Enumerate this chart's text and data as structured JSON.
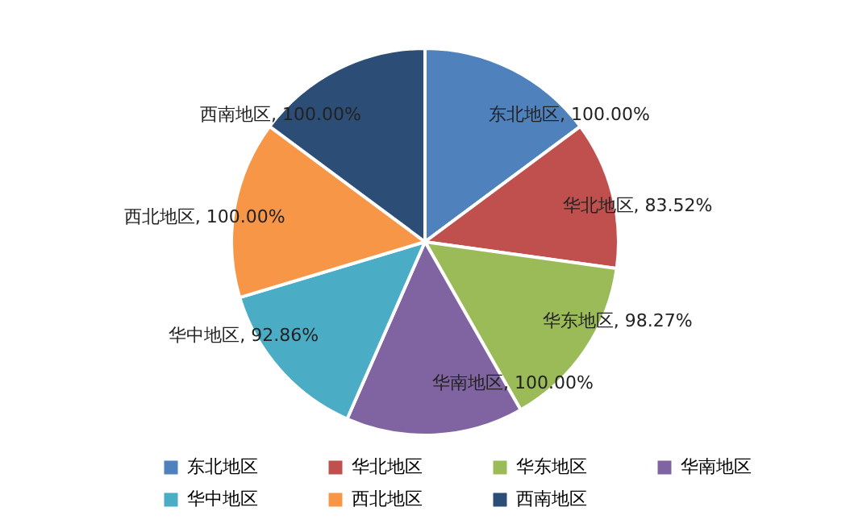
{
  "chart_data": {
    "type": "pie",
    "categories": [
      "东北地区",
      "华北地区",
      "华东地区",
      "华南地区",
      "华中地区",
      "西北地区",
      "西南地区"
    ],
    "values": [
      100,
      83.52,
      98.27,
      100,
      92.86,
      100,
      100
    ],
    "value_labels": [
      "东北地区, 100.00%",
      "华北地区, 83.52%",
      "华东地区, 98.27%",
      "华南地区, 100.00%",
      "华中地区, 92.86%",
      "西北地区, 100.00%",
      "西南地区, 100.00%"
    ],
    "colors": [
      "#4f81bd",
      "#c0504d",
      "#9bbb59",
      "#8064a2",
      "#4bacc6",
      "#f79646",
      "#2c4d75"
    ],
    "legend": "bottom"
  }
}
